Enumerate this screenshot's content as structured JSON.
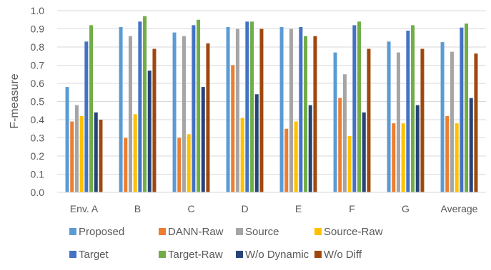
{
  "chart_data": {
    "type": "bar",
    "title": "",
    "xlabel": "",
    "ylabel": "F-measure",
    "ylim": [
      0,
      1.0
    ],
    "y_ticks": [
      "0.0",
      "0.1",
      "0.2",
      "0.3",
      "0.4",
      "0.5",
      "0.6",
      "0.7",
      "0.8",
      "0.9",
      "1.0"
    ],
    "grid": "horizontal",
    "legend_position": "bottom",
    "categories": [
      "Env. A",
      "B",
      "C",
      "D",
      "E",
      "F",
      "G",
      "Average"
    ],
    "series": [
      {
        "name": "Proposed",
        "color": "#5B9BD5",
        "values": [
          0.58,
          0.91,
          0.88,
          0.91,
          0.91,
          0.77,
          0.83,
          0.827
        ]
      },
      {
        "name": "DANN-Raw",
        "color": "#ED7D31",
        "values": [
          0.39,
          0.3,
          0.3,
          0.7,
          0.35,
          0.52,
          0.38,
          0.42
        ]
      },
      {
        "name": "Source",
        "color": "#A5A5A5",
        "values": [
          0.48,
          0.86,
          0.86,
          0.9,
          0.9,
          0.65,
          0.77,
          0.774
        ]
      },
      {
        "name": "Source-Raw",
        "color": "#FFC000",
        "values": [
          0.42,
          0.43,
          0.32,
          0.41,
          0.39,
          0.31,
          0.38,
          0.38
        ]
      },
      {
        "name": "Target",
        "color": "#4472C4",
        "values": [
          0.83,
          0.94,
          0.92,
          0.94,
          0.91,
          0.92,
          0.89,
          0.907
        ]
      },
      {
        "name": "Target-Raw",
        "color": "#70AD47",
        "values": [
          0.92,
          0.97,
          0.95,
          0.94,
          0.86,
          0.94,
          0.92,
          0.929
        ]
      },
      {
        "name": "W/o Dynamic",
        "color": "#264478",
        "values": [
          0.44,
          0.67,
          0.58,
          0.54,
          0.48,
          0.44,
          0.48,
          0.519
        ]
      },
      {
        "name": "W/o Diff",
        "color": "#9E480E",
        "values": [
          0.4,
          0.79,
          0.82,
          0.9,
          0.86,
          0.79,
          0.79,
          0.764
        ]
      }
    ]
  }
}
